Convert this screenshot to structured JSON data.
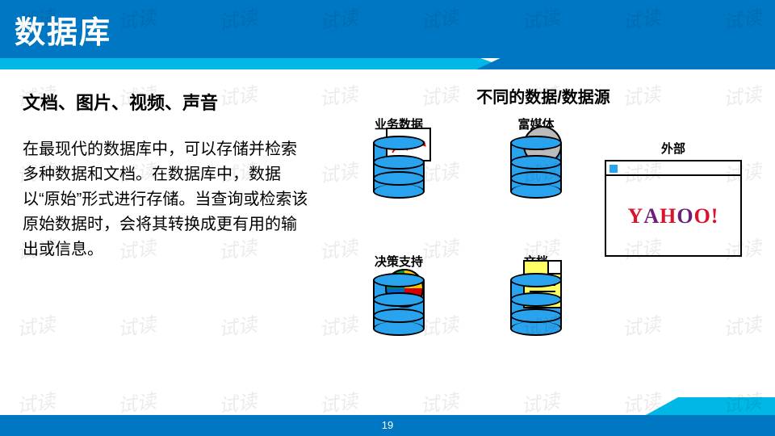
{
  "colors": {
    "title_bar": "#0077c2",
    "accent": "#00b7e5",
    "db_fill": "#2aa3ef",
    "watermark": "rgba(0,0,0,0.08)",
    "yahoo_red": "#d8142c",
    "background": "#ffffff"
  },
  "page_number": "19",
  "watermark_text": "试读",
  "title": "数据库",
  "left": {
    "heading": "文档、图片、视频、声音",
    "body": "在最现代的数据库中，可以存储并检索多种数据和文档。在数据库中，数据以“原始”形式进行存储。当查询或检索该原始数据时，会将其转换成更有用的输出或信息。"
  },
  "right": {
    "heading": "不同的数据/数据源",
    "items": {
      "biz": {
        "label": "业务数据",
        "icon": "chart"
      },
      "media": {
        "label": "富媒体",
        "icon": "cd"
      },
      "external": {
        "label": "外部",
        "icon": "browser",
        "logo": "YAHOO!"
      },
      "decision": {
        "label": "决策支持",
        "icon": "pie"
      },
      "doc": {
        "label": "文档",
        "icon": "document"
      }
    }
  },
  "layout": {
    "slide_w": 960,
    "slide_h": 540,
    "title_fontsize": 38,
    "subtitle_fontsize": 22,
    "body_fontsize": 20,
    "cell_label_fontsize": 15
  },
  "pie_colors": [
    "#ffcc00",
    "#d40000",
    "#0066cc",
    "#009933"
  ]
}
